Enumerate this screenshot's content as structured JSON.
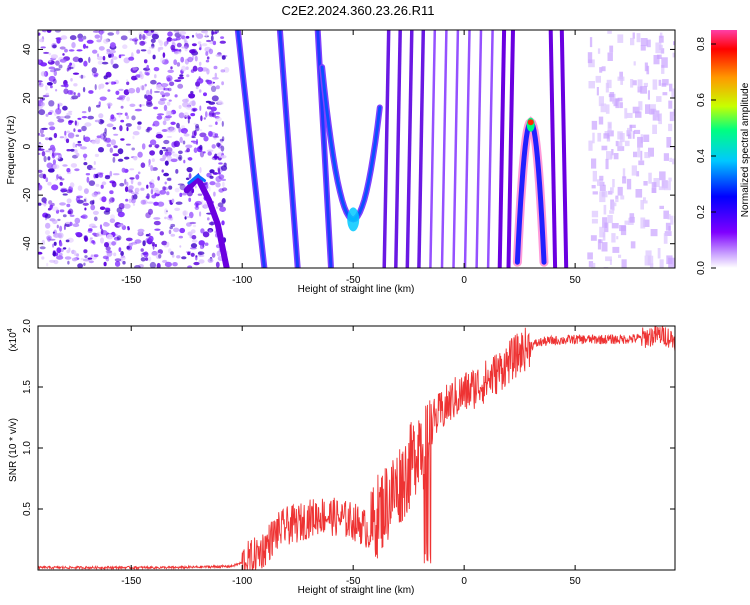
{
  "figure_title": "C2E2.2024.360.23.26.R11",
  "chart_data": [
    {
      "type": "heatmap",
      "title": "C2E2.2024.360.23.26.R11",
      "xlabel": "Height of straight line (km)",
      "ylabel": "Frequency (Hz)",
      "xlim": [
        -192,
        95
      ],
      "ylim": [
        -50,
        48
      ],
      "x_ticks": [
        -150,
        -100,
        -50,
        0,
        50
      ],
      "y_ticks": [
        -40,
        -20,
        0,
        20,
        40
      ],
      "colorbar": {
        "label": "Normalized spectral amplitude",
        "range": [
          0,
          0.85
        ],
        "ticks": [
          0.0,
          0.2,
          0.4,
          0.6,
          0.8
        ],
        "colors": [
          "#ffffff",
          "#a050ff",
          "#6a00e0",
          "#0000ff",
          "#00c8ff",
          "#00ff80",
          "#c8ff00",
          "#ff9900",
          "#ff0000",
          "#ff33aa"
        ]
      },
      "features": [
        {
          "name": "parabola-apex",
          "x": -50,
          "y": -30
        },
        {
          "name": "peak-apex",
          "x": 30,
          "y": 10,
          "amplitude": 0.85
        }
      ]
    },
    {
      "type": "line",
      "title": "",
      "xlabel": "Height of straight line (km)",
      "ylabel": "SNR (10 * v/v)",
      "scale_note": "(x10",
      "scale_exp": "4",
      "xlim": [
        -192,
        95
      ],
      "ylim": [
        0,
        2.0
      ],
      "x_ticks": [
        -150,
        -100,
        -50,
        0,
        50
      ],
      "y_ticks": [
        0.5,
        1.0,
        1.5,
        2.0
      ],
      "y_tick_labels": [
        "0.5",
        "1.0",
        "1.5",
        "2.0"
      ],
      "color": "#ee3333",
      "series": [
        {
          "x": [
            -192,
            -160,
            -130,
            -105,
            -100,
            -95,
            -90,
            -85,
            -80,
            -75,
            -70,
            -65,
            -60,
            -55,
            -50,
            -45,
            -42,
            -40,
            -35,
            -30,
            -25,
            -22,
            -20,
            -18,
            -15,
            -10,
            -5,
            0,
            5,
            10,
            15,
            20,
            25,
            30,
            35,
            40,
            50,
            60,
            70,
            80,
            85,
            90,
            95
          ],
          "y": [
            0.02,
            0.02,
            0.02,
            0.03,
            0.06,
            0.1,
            0.18,
            0.3,
            0.36,
            0.38,
            0.42,
            0.45,
            0.44,
            0.42,
            0.4,
            0.35,
            0.3,
            0.42,
            0.55,
            0.68,
            0.82,
            0.95,
            1.1,
            0.95,
            1.2,
            1.3,
            1.4,
            1.45,
            1.5,
            1.55,
            1.62,
            1.7,
            1.78,
            1.84,
            1.87,
            1.88,
            1.89,
            1.89,
            1.89,
            1.9,
            1.92,
            1.93,
            1.88
          ]
        }
      ]
    }
  ]
}
